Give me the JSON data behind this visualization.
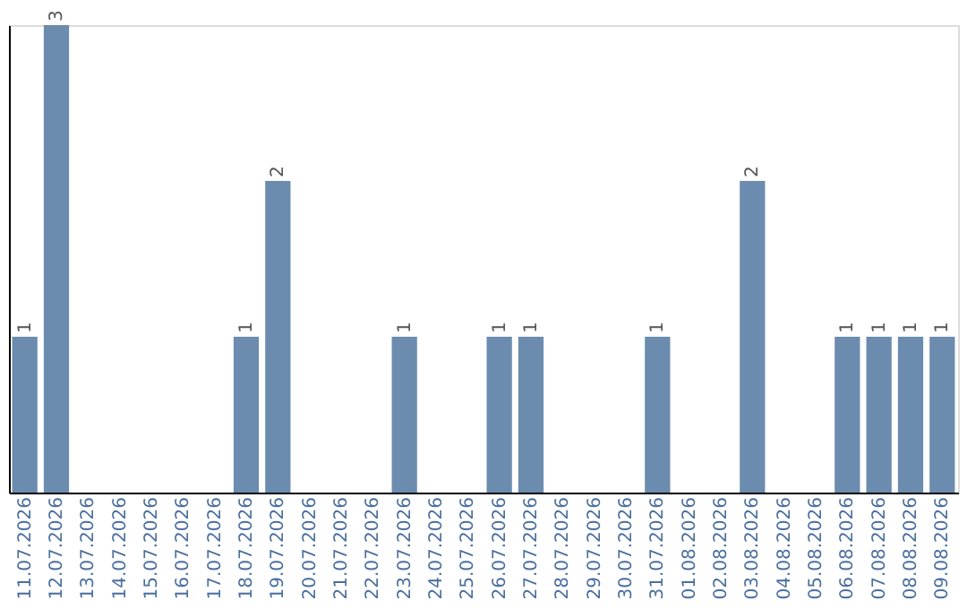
{
  "chart_data": {
    "type": "bar",
    "categories": [
      "11.07.2026",
      "12.07.2026",
      "13.07.2026",
      "14.07.2026",
      "15.07.2026",
      "16.07.2026",
      "17.07.2026",
      "18.07.2026",
      "19.07.2026",
      "20.07.2026",
      "21.07.2026",
      "22.07.2026",
      "23.07.2026",
      "24.07.2026",
      "25.07.2026",
      "26.07.2026",
      "27.07.2026",
      "28.07.2026",
      "29.07.2026",
      "30.07.2026",
      "31.07.2026",
      "01.08.2026",
      "02.08.2026",
      "03.08.2026",
      "04.08.2026",
      "05.08.2026",
      "06.08.2026",
      "07.08.2026",
      "08.08.2026",
      "09.08.2026"
    ],
    "values": [
      1,
      3,
      0,
      0,
      0,
      0,
      0,
      1,
      2,
      0,
      0,
      0,
      1,
      0,
      0,
      1,
      1,
      0,
      0,
      0,
      1,
      0,
      0,
      2,
      0,
      0,
      1,
      1,
      1,
      1
    ],
    "value_labels": [
      "1",
      "3",
      null,
      null,
      null,
      null,
      null,
      "1",
      "2",
      null,
      null,
      null,
      "1",
      null,
      null,
      "1",
      "1",
      null,
      null,
      null,
      "1",
      null,
      null,
      "2",
      null,
      null,
      "1",
      "1",
      "1",
      "1"
    ],
    "color": "#6b8cae",
    "grid": false,
    "tick_labels": "x"
  }
}
